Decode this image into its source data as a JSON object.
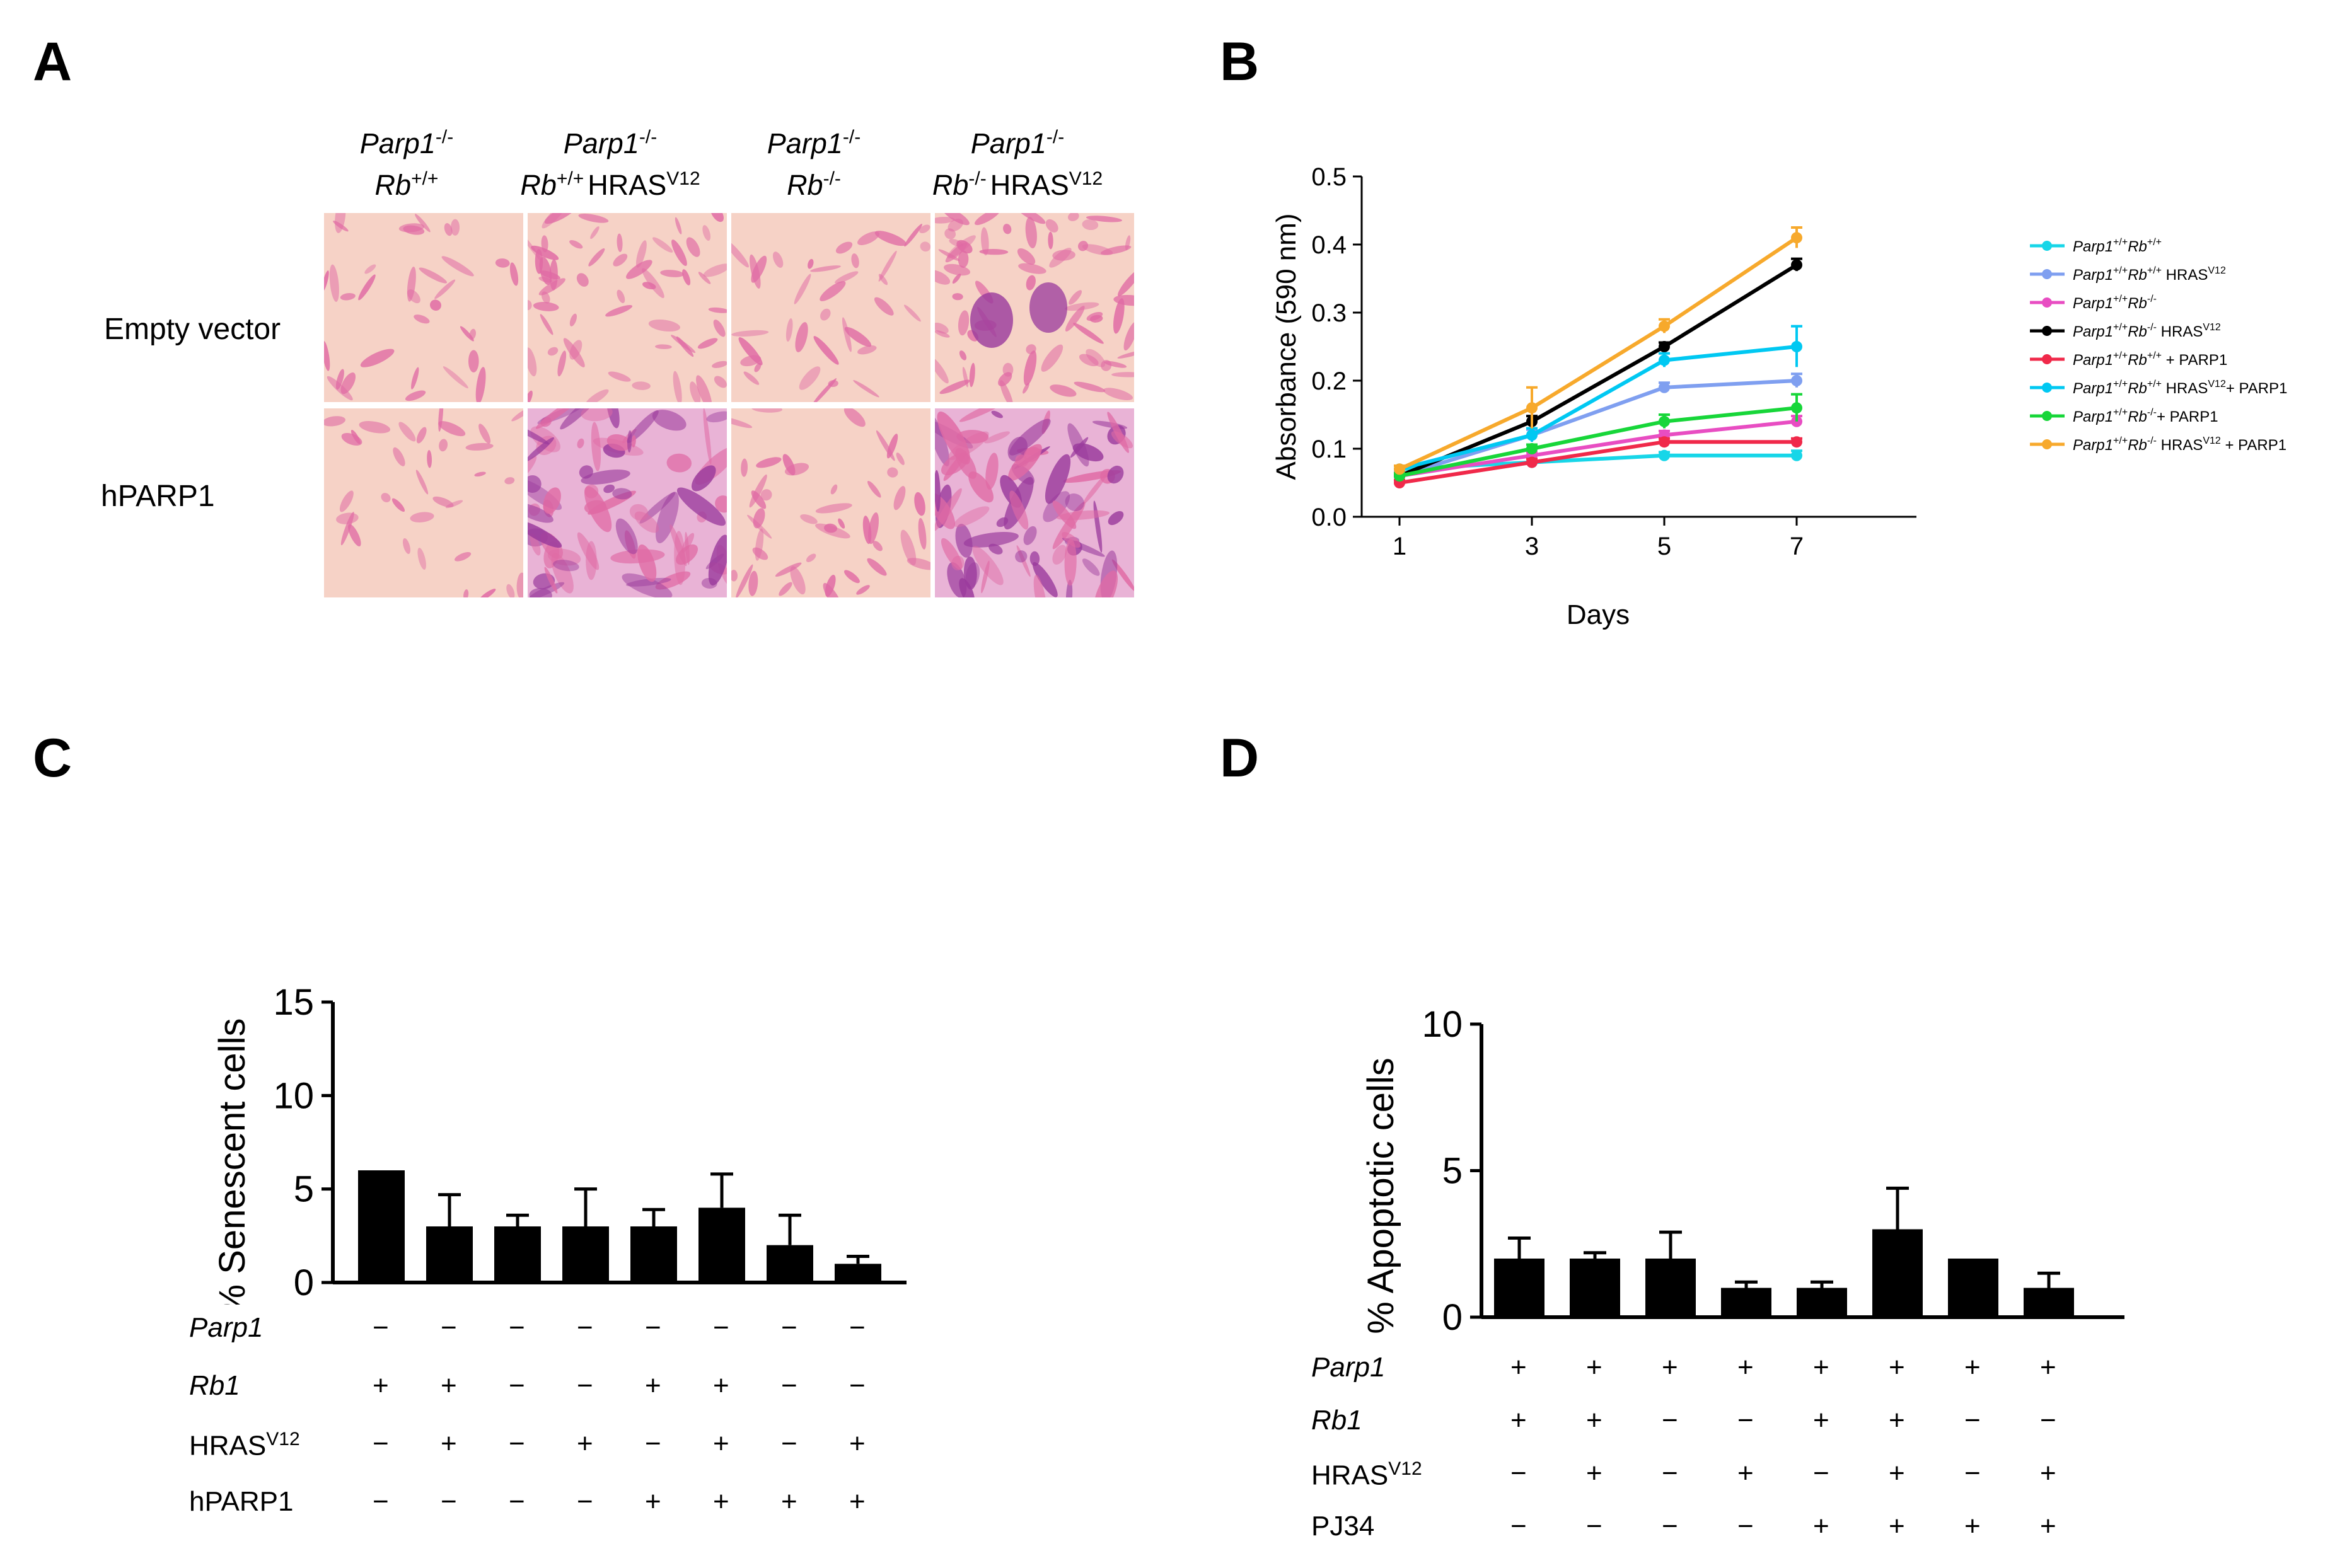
{
  "panels": {
    "a": "A",
    "b": "B",
    "c": "C",
    "d": "D"
  },
  "panel_a": {
    "columns": [
      {
        "l1": "Parp1",
        "s1": "-/-",
        "l2a": "Rb",
        "s2": "+/+",
        "l2b": "",
        "s3": ""
      },
      {
        "l1": "Parp1",
        "s1": "-/-",
        "l2a": "Rb",
        "s2": "+/+",
        "l2b": "HRAS",
        "s3": "V12"
      },
      {
        "l1": "Parp1",
        "s1": "-/-",
        "l2a": "Rb",
        "s2": "-/-",
        "l2b": "",
        "s3": ""
      },
      {
        "l1": "Parp1",
        "s1": "-/-",
        "l2a": "Rb",
        "s2": "-/-",
        "l2b": "HRAS",
        "s3": "V12"
      }
    ],
    "rows": [
      "Empty vector",
      "hPARP1"
    ],
    "colors": {
      "pale": "#f6d2c6",
      "pink": "#e06aa4",
      "purple": "#9a3a9c"
    }
  },
  "chart_data": [
    {
      "id": "B",
      "type": "line",
      "xlabel": "Days",
      "ylabel": "Absorbance (590 nm)",
      "x": [
        1,
        3,
        5,
        7
      ],
      "xticks": [
        "1",
        "3",
        "5",
        "7"
      ],
      "ylim": [
        0,
        0.5
      ],
      "yticks": [
        "0.0",
        "0.1",
        "0.2",
        "0.3",
        "0.4",
        "0.5"
      ],
      "series": [
        {
          "name": "Parp1+/+Rb+/+",
          "p": "Parp1",
          "ps": "+/+",
          "r": "Rb",
          "rs": "+/+",
          "extra": "",
          "extra_sup": "",
          "tail": "",
          "color": "#17d6e8",
          "values": [
            0.07,
            0.08,
            0.09,
            0.09
          ],
          "err": [
            0.005,
            0.005,
            0.005,
            0.007
          ]
        },
        {
          "name": "Parp1+/+Rb+/+ HRASV12",
          "p": "Parp1",
          "ps": "+/+",
          "r": "Rb",
          "rs": "+/+",
          "extra": " HRAS",
          "extra_sup": "V12",
          "tail": "",
          "color": "#7f9ff0",
          "values": [
            0.06,
            0.12,
            0.19,
            0.2
          ],
          "err": [
            0.005,
            0.008,
            0.007,
            0.01
          ]
        },
        {
          "name": "Parp1+/+Rb-/-",
          "p": "Parp1",
          "ps": "+/+",
          "r": "Rb",
          "rs": "-/-",
          "extra": "",
          "extra_sup": "",
          "tail": "",
          "color": "#e84dc2",
          "values": [
            0.06,
            0.09,
            0.12,
            0.14
          ],
          "err": [
            0.004,
            0.005,
            0.006,
            0.008
          ]
        },
        {
          "name": "Parp1+/+Rb-/- HRASV12",
          "p": "Parp1",
          "ps": "+/+",
          "r": "Rb",
          "rs": "-/-",
          "extra": " HRAS",
          "extra_sup": "V12",
          "tail": "",
          "color": "#000000",
          "values": [
            0.06,
            0.14,
            0.25,
            0.37
          ],
          "err": [
            0.004,
            0.008,
            0.006,
            0.009
          ]
        },
        {
          "name": "Parp1+/+Rb+/+ + PARP1",
          "p": "Parp1",
          "ps": "+/+",
          "r": "Rb",
          "rs": "+/+",
          "extra": "",
          "extra_sup": "",
          "tail": " + PARP1",
          "color": "#f0294a",
          "values": [
            0.05,
            0.08,
            0.11,
            0.11
          ],
          "err": [
            0.004,
            0.005,
            0.005,
            0.005
          ]
        },
        {
          "name": "Parp1+/+Rb+/+ HRASV12+ PARP1",
          "p": "Parp1",
          "ps": "+/+",
          "r": "Rb",
          "rs": "+/+",
          "extra": " HRAS",
          "extra_sup": "V12",
          "tail": "+ PARP1",
          "color": "#00c8f2",
          "values": [
            0.07,
            0.12,
            0.23,
            0.25
          ],
          "err": [
            0.005,
            0.01,
            0.01,
            0.03
          ]
        },
        {
          "name": "Parp1+/+Rb-/-+ PARP1",
          "p": "Parp1",
          "ps": "+/+",
          "r": "Rb",
          "rs": "-/-",
          "extra": "",
          "extra_sup": "",
          "tail": "+ PARP1",
          "color": "#17d639",
          "values": [
            0.06,
            0.1,
            0.14,
            0.16
          ],
          "err": [
            0.004,
            0.006,
            0.01,
            0.02
          ]
        },
        {
          "name": "Parp1+/+Rb-/- HRASV12 + PARP1",
          "p": "Parp1",
          "ps": "+/+",
          "r": "Rb",
          "rs": "-/-",
          "extra": " HRAS",
          "extra_sup": "V12",
          "tail": " + PARP1",
          "color": "#f7a92c",
          "values": [
            0.07,
            0.16,
            0.28,
            0.41
          ],
          "err": [
            0.005,
            0.03,
            0.01,
            0.015
          ]
        }
      ]
    },
    {
      "id": "C",
      "type": "bar",
      "ylabel": "% Senescent cells",
      "ylim": [
        0,
        15
      ],
      "yticks": [
        "0",
        "5",
        "10",
        "15"
      ],
      "values": [
        6,
        3,
        3,
        3,
        3,
        4,
        2,
        1
      ],
      "err": [
        0,
        1.7,
        0.6,
        2.0,
        0.9,
        1.8,
        1.6,
        0.4
      ],
      "table": [
        {
          "label": "Parp1",
          "italic": true,
          "sup": "",
          "signs": [
            "−",
            "−",
            "−",
            "−",
            "−",
            "−",
            "−",
            "−"
          ]
        },
        {
          "label": "Rb1",
          "italic": true,
          "sup": "",
          "signs": [
            "+",
            "+",
            "−",
            "−",
            "+",
            "+",
            "−",
            "−"
          ]
        },
        {
          "label": "HRAS",
          "italic": false,
          "sup": "V12",
          "signs": [
            "−",
            "+",
            "−",
            "+",
            "−",
            "+",
            "−",
            "+"
          ]
        },
        {
          "label": "hPARP1",
          "italic": false,
          "sup": "",
          "signs": [
            "−",
            "−",
            "−",
            "−",
            "+",
            "+",
            "+",
            "+"
          ]
        }
      ]
    },
    {
      "id": "D",
      "type": "bar",
      "ylabel": "% Apoptotic cells",
      "ylim": [
        0,
        10
      ],
      "yticks": [
        "0",
        "5",
        "10"
      ],
      "values": [
        2,
        2,
        2,
        1,
        1,
        3,
        2,
        1
      ],
      "err": [
        0.7,
        0.2,
        0.9,
        0.2,
        0.2,
        1.4,
        0,
        0.5
      ],
      "table": [
        {
          "label": "Parp1",
          "italic": true,
          "sup": "",
          "signs": [
            "+",
            "+",
            "+",
            "+",
            "+",
            "+",
            "+",
            "+"
          ]
        },
        {
          "label": "Rb1",
          "italic": true,
          "sup": "",
          "signs": [
            "+",
            "+",
            "−",
            "−",
            "+",
            "+",
            "−",
            "−"
          ]
        },
        {
          "label": "HRAS",
          "italic": false,
          "sup": "V12",
          "signs": [
            "−",
            "+",
            "−",
            "+",
            "−",
            "+",
            "−",
            "+"
          ]
        },
        {
          "label": "PJ34",
          "italic": false,
          "sup": "",
          "signs": [
            "−",
            "−",
            "−",
            "−",
            "+",
            "+",
            "+",
            "+"
          ]
        }
      ]
    }
  ]
}
